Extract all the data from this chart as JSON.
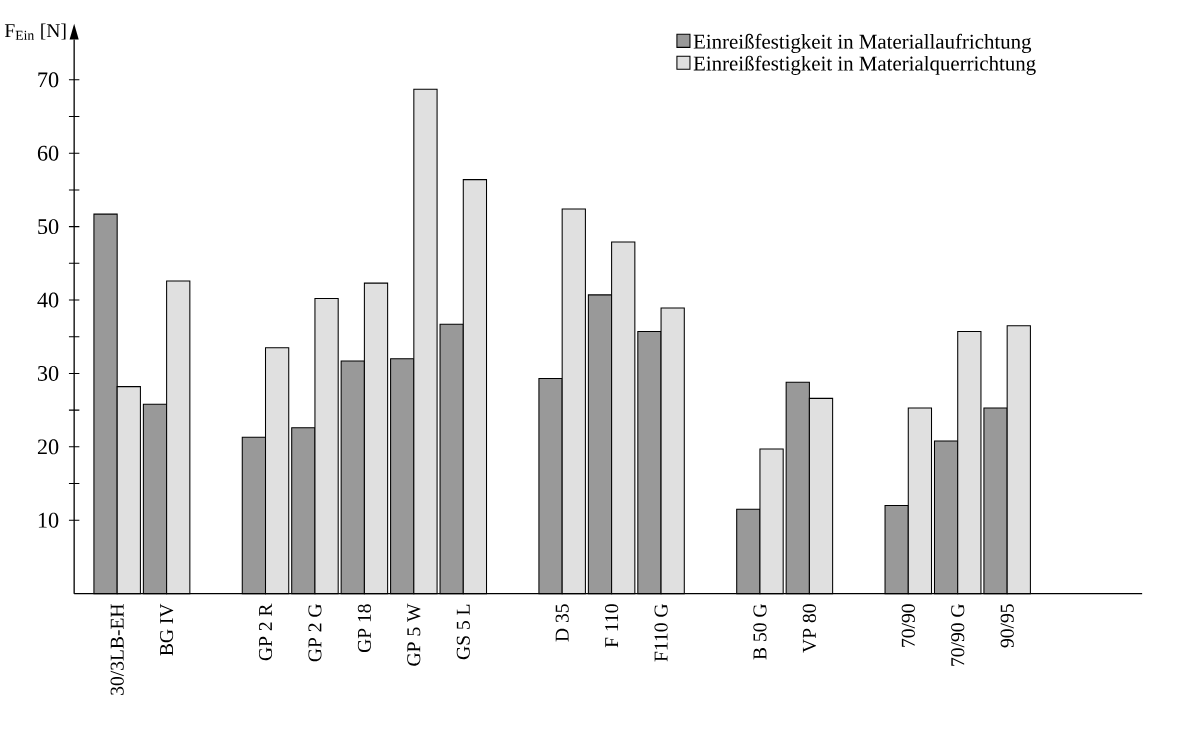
{
  "chart_data": {
    "type": "bar",
    "ylabel": "F$_{Ein}$ [N]",
    "categories": [
      "30/3LB-EH",
      "BG IV",
      null,
      "GP 2 R",
      "GP 2 G",
      "GP 18",
      "GP 5 W",
      "GS 5 L",
      null,
      "D 35",
      "F 110",
      "F110 G",
      null,
      "B 50 G",
      "VP 80",
      null,
      "70/90",
      "70/90 G",
      "90/95"
    ],
    "series": [
      {
        "name": "Einreißfestigkeit in Materiallaufrichtung",
        "color": "#999999",
        "values": [
          51.7,
          25.8,
          null,
          21.3,
          22.6,
          31.7,
          32.0,
          36.7,
          null,
          29.3,
          40.7,
          35.7,
          null,
          11.5,
          28.8,
          null,
          12.0,
          20.8,
          25.3
        ]
      },
      {
        "name": "Einreißfestigkeit in Materialquerrichtung",
        "color": "#e0e0e0",
        "values": [
          28.2,
          42.6,
          null,
          33.5,
          40.2,
          42.3,
          68.7,
          56.4,
          null,
          52.4,
          47.9,
          38.9,
          null,
          19.7,
          26.6,
          null,
          25.3,
          35.7,
          36.5
        ]
      }
    ],
    "ylim": [
      0,
      75.5
    ],
    "yticks": [
      10,
      20,
      30,
      40,
      50,
      60,
      70
    ],
    "legend": "top right"
  }
}
